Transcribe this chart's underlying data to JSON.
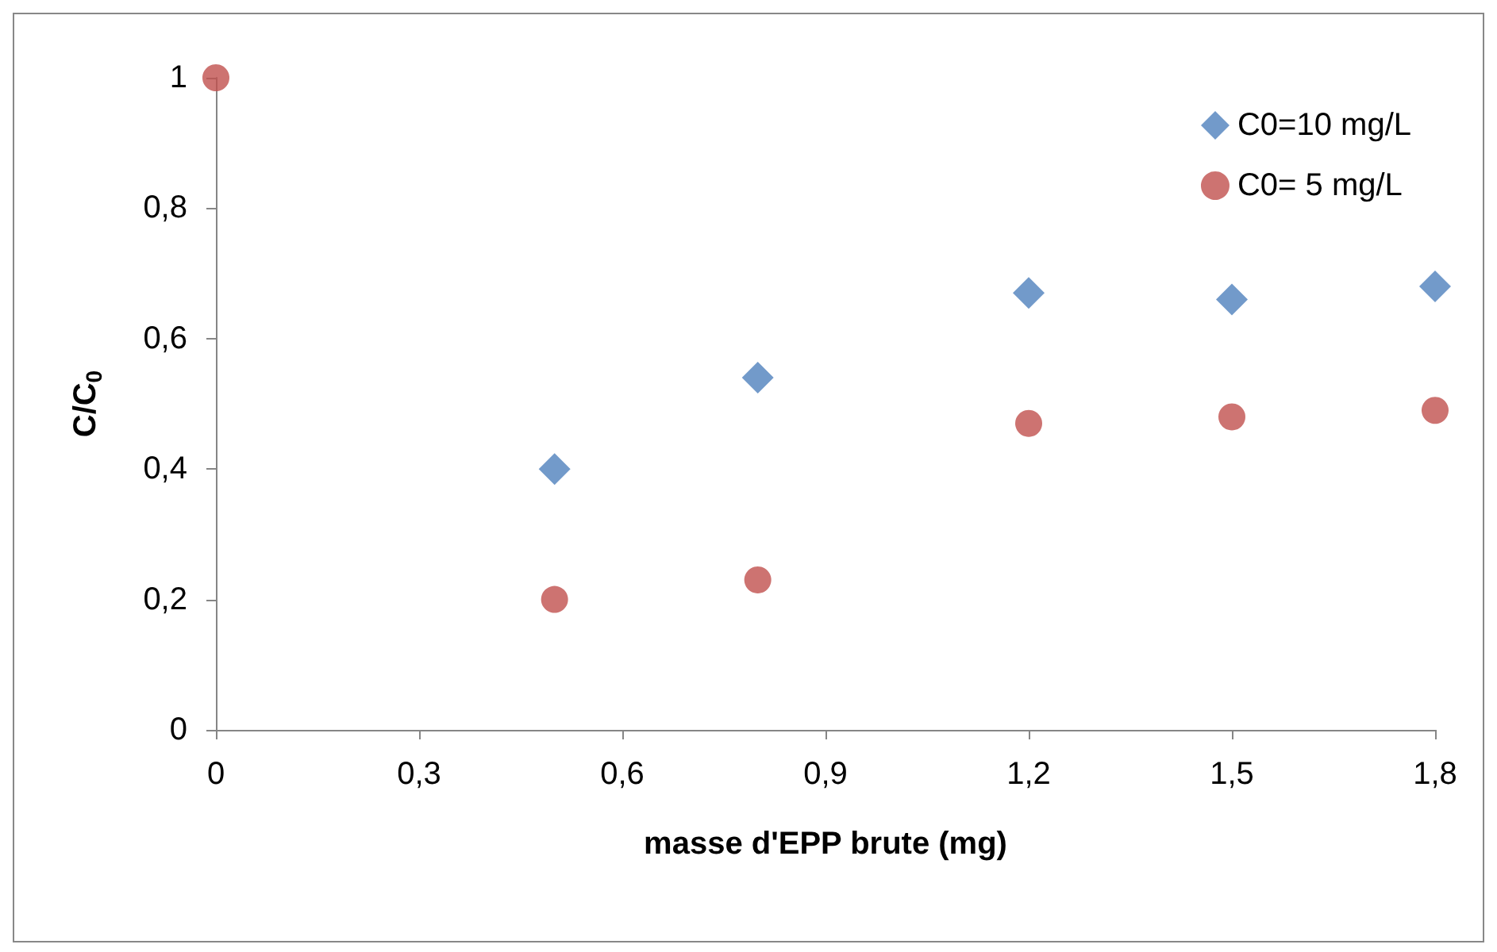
{
  "chart_data": {
    "type": "scatter",
    "xlabel": "masse d'EPP brute (mg)",
    "ylabel": "C/C$_{0}$",
    "x": [
      0,
      0.5,
      0.8,
      1.2,
      1.5,
      1.8
    ],
    "series": [
      {
        "name": "C0=10 mg/L",
        "color": "#4f81bd",
        "marker": "diamond",
        "values": [
          null,
          0.4,
          0.54,
          0.67,
          0.66,
          0.68
        ]
      },
      {
        "name": "C0= 5 mg/L",
        "color": "#c0504d",
        "marker": "circle",
        "values": [
          1,
          0.2,
          0.23,
          0.47,
          0.48,
          0.49
        ]
      }
    ],
    "xlim": [
      0,
      1.8
    ],
    "xticks": [
      0,
      {
        "value": 0.3,
        "label": "0,3"
      },
      {
        "value": 0.6,
        "label": "0,6"
      },
      {
        "value": 0.9,
        "label": "0,9"
      },
      {
        "value": 1.2,
        "label": "1,2"
      },
      {
        "value": 1.5,
        "label": "1,5"
      },
      {
        "value": 1.8,
        "label": "1,8"
      }
    ],
    "ylim": [
      0,
      1
    ],
    "yticks": [
      0,
      {
        "value": 0.2,
        "label": "0,2"
      },
      {
        "value": 0.4,
        "label": "0,4"
      },
      {
        "value": 0.6,
        "label": "0,6"
      },
      {
        "value": 0.8,
        "label": "0,8"
      },
      1
    ],
    "grid": false,
    "legend": "top right"
  }
}
